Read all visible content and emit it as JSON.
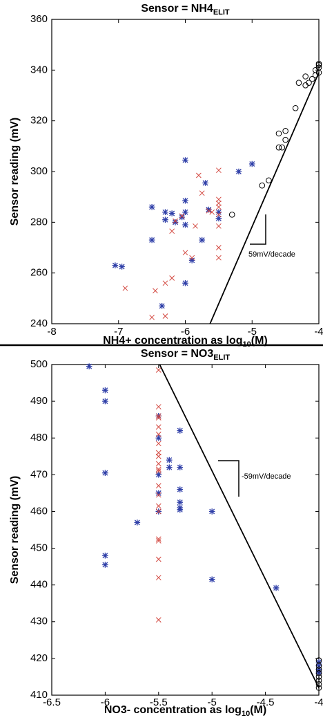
{
  "chart_data": [
    {
      "type": "scatter",
      "title": "Sensor = NH4",
      "title_subscript": "ELIT",
      "xlabel": [
        "NH4+ concentration as log",
        "10",
        "(M)"
      ],
      "ylabel": "Sensor reading (mV)",
      "xlim": [
        -8,
        -4
      ],
      "xticks": [
        -8,
        -7,
        -6,
        -5,
        -4
      ],
      "ylim": [
        240,
        360
      ],
      "yticks": [
        240,
        260,
        280,
        300,
        320,
        340,
        360
      ],
      "annotation": "59mV/decade",
      "series": [
        {
          "marker": "asterisk",
          "color": "#2f3fa8",
          "x": [
            -7.05,
            -6.95,
            -6.5,
            -6.5,
            -6.35,
            -6.3,
            -6.3,
            -6.15,
            -6.05,
            -6,
            -6,
            -6,
            -6,
            -6,
            -5.9,
            -5.75,
            -5.7,
            -5.65,
            -5.5,
            -5.5,
            -5.2,
            -5,
            -6.2
          ],
          "values": [
            263,
            262.5,
            273,
            286,
            247,
            284,
            281,
            280,
            282,
            284,
            288.5,
            304.5,
            279,
            256,
            265,
            273,
            295.5,
            285,
            284,
            281.5,
            300,
            303,
            283.5
          ]
        },
        {
          "marker": "x",
          "color": "#d2443c",
          "x": [
            -6.9,
            -6.5,
            -6.45,
            -6.3,
            -6.3,
            -6.2,
            -6.2,
            -6.15,
            -6.05,
            -6,
            -5.9,
            -5.85,
            -5.8,
            -5.75,
            -5.65,
            -5.6,
            -5.5,
            -5.5,
            -5.5,
            -5.5,
            -5.5,
            -5.5,
            -5.5,
            -5.5
          ],
          "values": [
            254,
            242.5,
            253,
            243,
            256,
            258,
            276.5,
            280.5,
            282.5,
            268,
            266,
            278.5,
            298.5,
            291.5,
            284.5,
            284,
            300.5,
            289,
            287.5,
            286,
            283,
            278.5,
            270,
            266
          ]
        },
        {
          "marker": "circle",
          "color": "#000000",
          "x": [
            -5.3,
            -4.85,
            -4.75,
            -4.6,
            -4.55,
            -4.6,
            -4.5,
            -4.5,
            -4.35,
            -4.3,
            -4.2,
            -4.2,
            -4.15,
            -4.1,
            -4.05,
            -4.05,
            -4,
            -4,
            -4,
            -4
          ],
          "values": [
            283,
            294.5,
            296.5,
            309.5,
            309.5,
            315,
            316,
            312.5,
            325,
            335,
            334,
            337.5,
            335,
            336.5,
            338,
            340,
            339,
            341,
            342.5,
            342
          ]
        },
        {
          "marker": "line",
          "color": "#000000",
          "x": [
            -5.63,
            -4
          ],
          "values": [
            240,
            339
          ]
        }
      ]
    },
    {
      "type": "scatter",
      "title": "Sensor = NO3",
      "title_subscript": "ELIT",
      "xlabel": [
        "NO3- concentration as log",
        "10",
        "(M)"
      ],
      "ylabel": "Sensor reading (mV)",
      "xlim": [
        -6.5,
        -4
      ],
      "xticks": [
        -6.5,
        -6,
        -5.5,
        -5,
        -4.5,
        -4
      ],
      "ylim": [
        410,
        500
      ],
      "yticks": [
        410,
        420,
        430,
        440,
        450,
        460,
        470,
        480,
        490,
        500
      ],
      "annotation": "-59mV/decade",
      "series": [
        {
          "marker": "asterisk",
          "color": "#2f3fa8",
          "x": [
            -6.15,
            -6,
            -6,
            -6,
            -6,
            -6,
            -5.7,
            -5.5,
            -5.5,
            -5.5,
            -5.5,
            -5.5,
            -5.4,
            -5.4,
            -5.3,
            -5.3,
            -5.3,
            -5.3,
            -5.3,
            -5.3,
            -5,
            -5,
            -4.4,
            -4,
            -4,
            -4,
            -4,
            -4
          ],
          "values": [
            499.5,
            493,
            490,
            470.5,
            448,
            445.5,
            457,
            460,
            465,
            470,
            480,
            486,
            474,
            472,
            482,
            472,
            466,
            462.5,
            461,
            460.5,
            460,
            441.5,
            439.2,
            419,
            418,
            417,
            416.5,
            416
          ]
        },
        {
          "marker": "x",
          "color": "#d2443c",
          "x": [
            -5.5,
            -5.5,
            -5.5,
            -5.5,
            -5.5,
            -5.5,
            -5.5,
            -5.5,
            -5.5,
            -5.5,
            -5.5,
            -5.5,
            -5.5,
            -5.5,
            -5.5,
            -5.5,
            -5.5,
            -5.5,
            -5.5,
            -5.5,
            -5.5
          ],
          "values": [
            498.5,
            488.5,
            486,
            485.5,
            483,
            481,
            478.5,
            476,
            475,
            473,
            471.5,
            471,
            467,
            464.5,
            461.5,
            460,
            452.5,
            452,
            447,
            442,
            430.5
          ]
        },
        {
          "marker": "circle",
          "color": "#000000",
          "x": [
            -4,
            -4,
            -4,
            -4,
            -4,
            -4,
            -4,
            -4
          ],
          "values": [
            419.5,
            418,
            417,
            416,
            415,
            414,
            413,
            412
          ]
        },
        {
          "marker": "line",
          "color": "#000000",
          "x": [
            -5.49,
            -4
          ],
          "values": [
            500,
            412
          ]
        }
      ]
    }
  ]
}
